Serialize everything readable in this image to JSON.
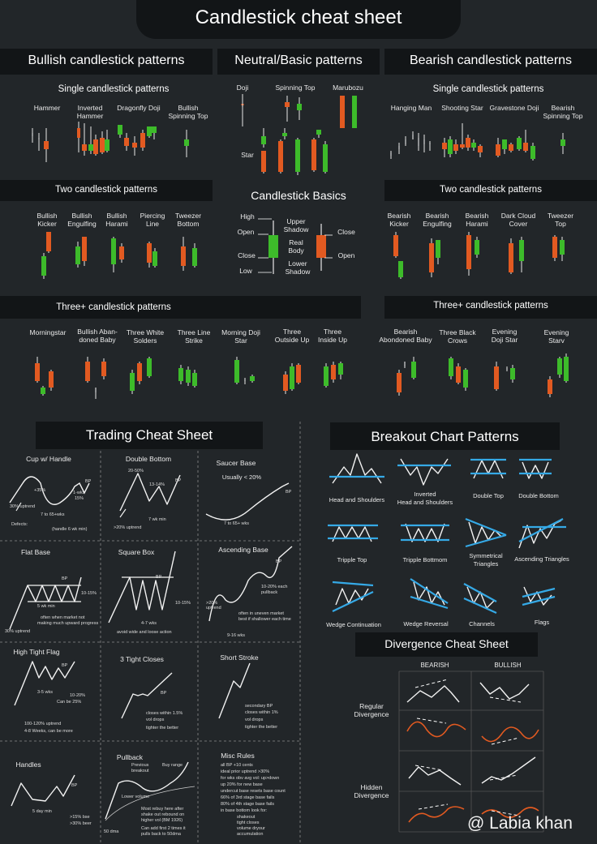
{
  "title": "Candlestick cheat sheet",
  "colors": {
    "bull": "#3dbb2a",
    "bear": "#e25a21",
    "bg": "#222629",
    "panel": "#121517",
    "accent": "#35a9e6"
  },
  "sections": {
    "bullish": "Bullish candlestick patterns",
    "neutral": "Neutral/Basic patterns",
    "bearish": "Bearish candlestick patterns",
    "single_left": "Single candlestick patterns",
    "single_right": "Single candlestick patterns",
    "two_left": "Two candlestick patterns",
    "two_right": "Two candlestick patterns",
    "basics": "Candlestick Basics",
    "three_left": "Three+ candlestick patterns",
    "three_right": "Three+ candlestick patterns"
  },
  "bullish_single": [
    "Hammer",
    "Inverted\nHammer",
    "Dragonfly Doji",
    "Bullish\nSpinning Top"
  ],
  "neutral_items": [
    "Doji",
    "Spinning Top",
    "Marubozu",
    "Star"
  ],
  "bearish_single": [
    "Hanging Man",
    "Shooting Star",
    "Gravestone Doji",
    "Bearish\nSpinning Top"
  ],
  "bullish_two": [
    "Bullish\nKicker",
    "Bullish\nEngulfing",
    "Bullish\nHarami",
    "Piercing\nLine",
    "Tweezer\nBottom"
  ],
  "bearish_two": [
    "Bearish\nKicker",
    "Bearish\nEngulfing",
    "Bearish\nHarami",
    "Dark Cloud\nCover",
    "Tweezer\nTop"
  ],
  "basics_labels": {
    "high": "High",
    "open1": "Open",
    "close1": "Close",
    "low": "Low",
    "upper": "Upper\nShadow",
    "real": "Real\nBody",
    "lower": "Lower\nShadow",
    "close2": "Close",
    "open2": "Open"
  },
  "bullish_three": [
    "Morningstar",
    "Bullish Aban-\ndoned Baby",
    "Three White\nSolders",
    "Three Line\nStrike",
    "Morning Doji\nStar",
    "Three\nOutside Up",
    "Three\nInside Up"
  ],
  "bearish_three": [
    "Bearish\nAbondoned Baby",
    "Three Black\nCrows",
    "Evening\nDoji Star",
    "Evening\nStarv"
  ],
  "trading": {
    "title": "Trading Cheat Sheet",
    "cells": {
      "cup": {
        "title": "Cup w/ Handle",
        "notes": [
          "+35%",
          "30% uptrend",
          "7 to 65+wks",
          "Defects:",
          "(handle 6 wk min)",
          "1-wks",
          "15%",
          "BP"
        ]
      },
      "double": {
        "title": "Double Bottom",
        "notes": [
          "20-50%",
          "13-14%",
          "7 wk min",
          ">20% uptrend",
          "BP"
        ]
      },
      "saucer": {
        "title": "Saucer Base",
        "notes": [
          "Usually < 20%",
          "7 to 65+ wks",
          "BP"
        ]
      },
      "flat": {
        "title": "Flat Base",
        "notes": [
          "BP",
          "10-15%",
          "5 wk min",
          "often when market not",
          "making much upward progress",
          "30% uptrend"
        ]
      },
      "square": {
        "title": "Square Box",
        "notes": [
          "BP",
          "10-15%",
          "4-7 wks",
          "avoid wide and loose action"
        ]
      },
      "ascending": {
        "title": "Ascending Base",
        "notes": [
          "BP",
          ">20%",
          "uptrend",
          "10-20% each",
          "pullback",
          "often in uneven market",
          "best if shallower each time",
          "9-16 wks"
        ]
      },
      "htf": {
        "title": "High Tight Flag",
        "notes": [
          "BP",
          "3-5 wks",
          "10-20%",
          "Can be 25%",
          "100-120% uptrend",
          "4-8 Weeks, can be more"
        ]
      },
      "ttc": {
        "title": "3 Tight Closes",
        "notes": [
          "BP",
          "closes within 1.5%",
          "vol drops",
          "tighter the better"
        ]
      },
      "short": {
        "title": "Short Stroke",
        "notes": [
          "secondary BP",
          "closes within 1%",
          "vol drops",
          "tighter the better"
        ]
      },
      "handles": {
        "title": "Handles",
        "notes": [
          "BP",
          "5 day min",
          ">15% bse",
          ">30% beer"
        ]
      },
      "pullback": {
        "title": "Pullback",
        "notes": [
          "Previous",
          "breakout",
          "Buy range",
          "Lower volume",
          "Most rebuy here after",
          "shake out rebound on",
          "higher vol (BM 1926)",
          "Can add first 2 times it",
          "pulls back to 50dma",
          "50 dma"
        ]
      },
      "misc": {
        "title": "Misc Rules",
        "notes": [
          "all BP +10 cents",
          "ideal prior uptrend >30%",
          "for wks obv avg vol: up>down",
          "up 20% for new base",
          "undercut base resets base count",
          "66% of 3rd stage base fails",
          "80% of 4th stage base fails",
          "in base bottom look for:",
          "shakeout",
          "tight closes",
          "volume dryour",
          "accumulation"
        ]
      }
    }
  },
  "breakout": {
    "title": "Breakout Chart Patterns",
    "items": [
      "Head and Shoulders",
      "Inverted\nHead and Shoulders",
      "Double Top",
      "Double Bottom",
      "Tripple Top",
      "Tripple Bottmom",
      "Symmetrical\nTriangles",
      "Ascending Triangles",
      "Wedge Continuation",
      "Wedge Reversal",
      "Channels",
      "Flags"
    ]
  },
  "divergence": {
    "title": "Divergence Cheat Sheet",
    "bearish": "BEARISH",
    "bullish": "BULLISH",
    "regular": "Regular\nDivergence",
    "hidden": "Hidden\nDivergence"
  },
  "watermark": "@ Labia khan"
}
